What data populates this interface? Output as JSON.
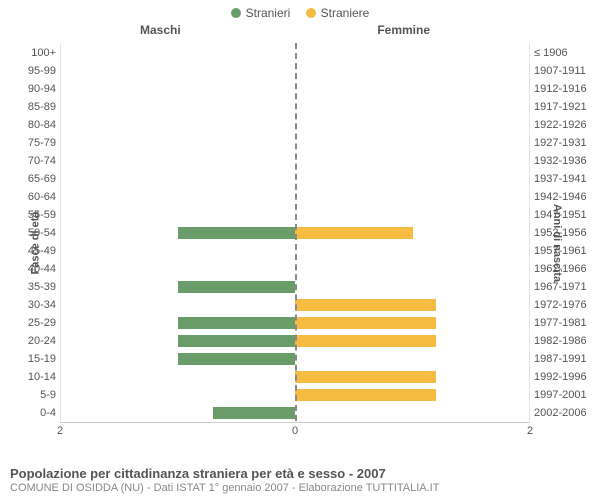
{
  "legend": {
    "stranieri": {
      "label": "Stranieri",
      "color": "#6a9c6a"
    },
    "straniere": {
      "label": "Straniere",
      "color": "#f6bc41"
    }
  },
  "headers": {
    "left": "Maschi",
    "right": "Femmine"
  },
  "axis_titles": {
    "left": "Fasce di età",
    "right": "Anni di nascita"
  },
  "chart": {
    "type": "population-pyramid",
    "x_max": 2,
    "x_ticks": [
      2,
      0,
      2
    ],
    "bg": "#ffffff",
    "grid_color": "#e5e5e5",
    "center_line_color": "#888888",
    "bar_left_color": "#6a9c6a",
    "bar_right_color": "#f6bc41",
    "rows": [
      {
        "age": "100+",
        "birth": "≤ 1906",
        "m": 0,
        "f": 0
      },
      {
        "age": "95-99",
        "birth": "1907-1911",
        "m": 0,
        "f": 0
      },
      {
        "age": "90-94",
        "birth": "1912-1916",
        "m": 0,
        "f": 0
      },
      {
        "age": "85-89",
        "birth": "1917-1921",
        "m": 0,
        "f": 0
      },
      {
        "age": "80-84",
        "birth": "1922-1926",
        "m": 0,
        "f": 0
      },
      {
        "age": "75-79",
        "birth": "1927-1931",
        "m": 0,
        "f": 0
      },
      {
        "age": "70-74",
        "birth": "1932-1936",
        "m": 0,
        "f": 0
      },
      {
        "age": "65-69",
        "birth": "1937-1941",
        "m": 0,
        "f": 0
      },
      {
        "age": "60-64",
        "birth": "1942-1946",
        "m": 0,
        "f": 0
      },
      {
        "age": "55-59",
        "birth": "1947-1951",
        "m": 0,
        "f": 0
      },
      {
        "age": "50-54",
        "birth": "1952-1956",
        "m": 1,
        "f": 1
      },
      {
        "age": "45-49",
        "birth": "1957-1961",
        "m": 0,
        "f": 0
      },
      {
        "age": "40-44",
        "birth": "1962-1966",
        "m": 0,
        "f": 0
      },
      {
        "age": "35-39",
        "birth": "1967-1971",
        "m": 1,
        "f": 0
      },
      {
        "age": "30-34",
        "birth": "1972-1976",
        "m": 0,
        "f": 1.2
      },
      {
        "age": "25-29",
        "birth": "1977-1981",
        "m": 1,
        "f": 1.2
      },
      {
        "age": "20-24",
        "birth": "1982-1986",
        "m": 1,
        "f": 1.2
      },
      {
        "age": "15-19",
        "birth": "1987-1991",
        "m": 1,
        "f": 0
      },
      {
        "age": "10-14",
        "birth": "1992-1996",
        "m": 0,
        "f": 1.2
      },
      {
        "age": "5-9",
        "birth": "1997-2001",
        "m": 0,
        "f": 1.2
      },
      {
        "age": "0-4",
        "birth": "2002-2006",
        "m": 0.7,
        "f": 0
      }
    ]
  },
  "caption": {
    "main": "Popolazione per cittadinanza straniera per età e sesso - 2007",
    "sub": "COMUNE DI OSIDDA (NU) - Dati ISTAT 1° gennaio 2007 - Elaborazione TUTTITALIA.IT"
  }
}
